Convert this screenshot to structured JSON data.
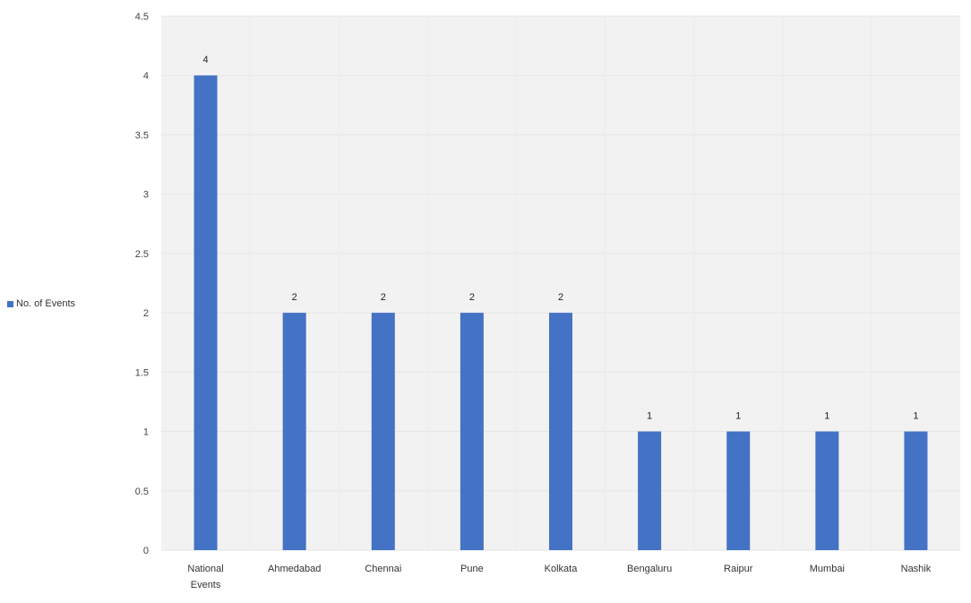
{
  "chart_data": {
    "type": "bar",
    "title": "",
    "xlabel": "",
    "ylabel": "",
    "categories": [
      [
        "National",
        "Events"
      ],
      [
        "Ahmedabad"
      ],
      [
        "Chennai"
      ],
      [
        "Pune"
      ],
      [
        "Kolkata"
      ],
      [
        "Bengaluru"
      ],
      [
        "Raipur"
      ],
      [
        "Mumbai"
      ],
      [
        "Nashik"
      ]
    ],
    "series": [
      {
        "name": "No. of Events",
        "values": [
          4,
          2,
          2,
          2,
          2,
          1,
          1,
          1,
          1
        ],
        "color": "#4472c4"
      }
    ],
    "ylim": [
      0,
      4.5
    ],
    "yticks": [
      "0",
      "0.5",
      "1",
      "1.5",
      "2",
      "2.5",
      "3",
      "3.5",
      "4",
      "4.5"
    ],
    "data_labels": [
      "4",
      "2",
      "2",
      "2",
      "2",
      "1",
      "1",
      "1",
      "1"
    ],
    "grid": true,
    "legend_position": "left",
    "plot_background": "#f2f2f2"
  },
  "legend": {
    "label": "No. of Events"
  }
}
